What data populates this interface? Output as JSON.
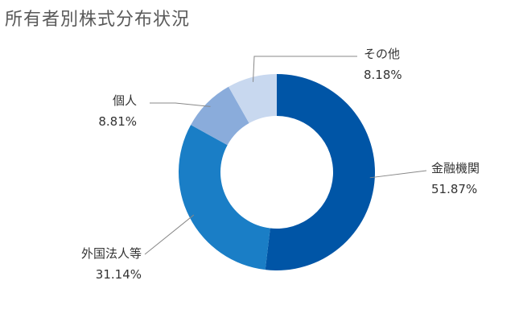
{
  "chart_data": {
    "type": "pie",
    "title": "所有者別株式分布状況",
    "donut": true,
    "slices": [
      {
        "label": "金融機関",
        "value": 51.87,
        "value_label": "51.87%",
        "color": "#0055a6"
      },
      {
        "label": "外国法人等",
        "value": 31.14,
        "value_label": "31.14%",
        "color": "#1a7ec6"
      },
      {
        "label": "個人",
        "value": 8.81,
        "value_label": "8.81%",
        "color": "#8aacdb"
      },
      {
        "label": "その他",
        "value": 8.18,
        "value_label": "8.18%",
        "color": "#c8d8ef"
      }
    ],
    "start": "12 o'clock",
    "direction": "clockwise",
    "label_line_color": "#888888"
  }
}
